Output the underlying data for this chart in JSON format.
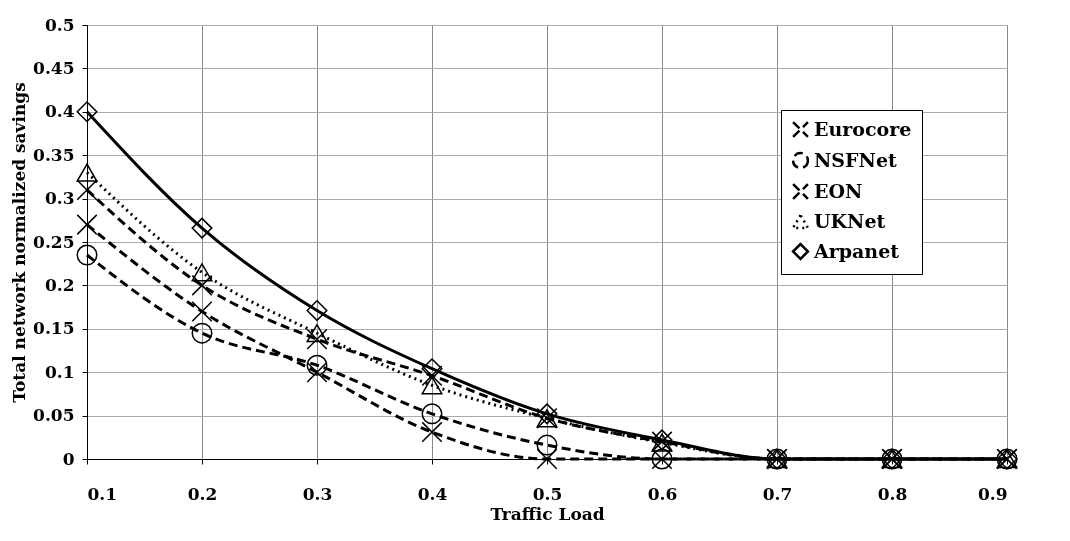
{
  "chart_data": {
    "type": "line",
    "xlabel": "Traffic Load",
    "ylabel": "Total network normalized savings",
    "x": [
      0.1,
      0.2,
      0.3,
      0.4,
      0.5,
      0.6,
      0.7,
      0.8,
      0.9
    ],
    "xlim": [
      0.1,
      0.9
    ],
    "xticks": [
      0.1,
      0.2,
      0.3,
      0.4,
      0.5,
      0.6,
      0.7,
      0.8,
      0.9
    ],
    "ylim": [
      0,
      0.5
    ],
    "yticks": [
      0,
      0.05,
      0.1,
      0.15,
      0.2,
      0.25,
      0.3,
      0.35,
      0.4,
      0.45,
      0.5
    ],
    "grid": true,
    "legend": "top right",
    "series": [
      {
        "name": "Eurocore",
        "color": "#000000",
        "marker": "cross",
        "line_style": "dashed",
        "values": [
          0.27,
          0.17,
          0.1,
          0.031,
          0,
          0,
          0,
          0,
          0
        ]
      },
      {
        "name": "NSFNet",
        "color": "#000000",
        "marker": "circle",
        "line_style": "dashed",
        "values": [
          0.235,
          0.145,
          0.108,
          0.052,
          0.016,
          0,
          0,
          0,
          0
        ]
      },
      {
        "name": "EON",
        "color": "#000000",
        "marker": "cross",
        "line_style": "dashed",
        "values": [
          0.31,
          0.2,
          0.138,
          0.096,
          0.047,
          0.02,
          0,
          0,
          0
        ]
      },
      {
        "name": "UKNet",
        "color": "#000000",
        "marker": "triangle",
        "line_style": "dotted",
        "values": [
          0.33,
          0.215,
          0.145,
          0.085,
          0.047,
          0.019,
          0,
          0,
          0
        ]
      },
      {
        "name": "Arpanet",
        "color": "#000000",
        "marker": "diamond",
        "line_style": "solid",
        "values": [
          0.4,
          0.266,
          0.171,
          0.104,
          0.052,
          0.022,
          0,
          0,
          0
        ]
      }
    ]
  }
}
